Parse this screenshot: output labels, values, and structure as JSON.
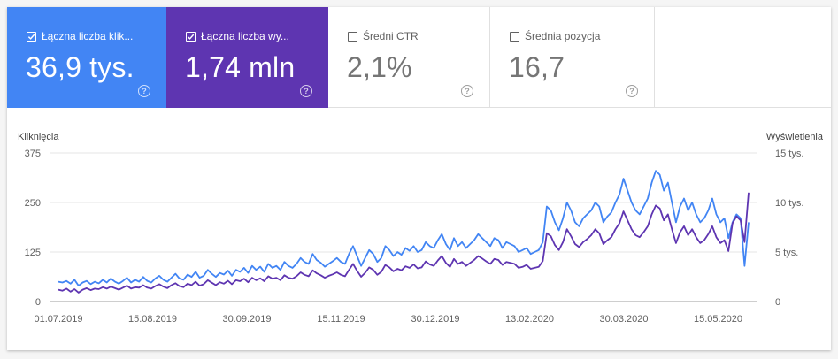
{
  "metrics": [
    {
      "label": "Łączna liczba klik...",
      "value": "36,9 tys.",
      "checked": true,
      "color": "#4285f4"
    },
    {
      "label": "Łączna liczba wy...",
      "value": "1,74 mln",
      "checked": true,
      "color": "#5e35b1"
    },
    {
      "label": "Średni CTR",
      "value": "2,1%",
      "checked": false
    },
    {
      "label": "Średnia pozycja",
      "value": "16,7",
      "checked": false
    }
  ],
  "help_glyph": "?",
  "chart_data": {
    "type": "line",
    "left_axis": {
      "title": "Kliknięcia",
      "ticks": [
        "375",
        "250",
        "125",
        "0"
      ],
      "ylim": [
        0,
        375
      ]
    },
    "right_axis": {
      "title": "Wyświetlenia",
      "ticks": [
        "15 tys.",
        "10 tys.",
        "5 tys.",
        "0"
      ],
      "ylim": [
        0,
        15000
      ]
    },
    "x_ticks": [
      "01.07.2019",
      "15.08.2019",
      "30.09.2019",
      "15.11.2019",
      "30.12.2019",
      "13.02.2020",
      "30.03.2020",
      "15.05.2020"
    ],
    "grid": true,
    "series": [
      {
        "axis": "left",
        "color": "#4285f4",
        "values": [
          50,
          48,
          52,
          45,
          55,
          40,
          48,
          52,
          44,
          50,
          46,
          55,
          48,
          58,
          50,
          45,
          52,
          60,
          48,
          55,
          50,
          62,
          52,
          48,
          58,
          65,
          55,
          50,
          60,
          70,
          58,
          55,
          68,
          62,
          75,
          60,
          65,
          80,
          70,
          62,
          72,
          68,
          78,
          65,
          80,
          75,
          85,
          72,
          90,
          80,
          88,
          75,
          95,
          85,
          90,
          80,
          100,
          90,
          85,
          95,
          110,
          100,
          95,
          120,
          105,
          98,
          88,
          95,
          102,
          110,
          100,
          95,
          120,
          140,
          115,
          90,
          110,
          130,
          120,
          100,
          110,
          140,
          130,
          115,
          125,
          118,
          135,
          128,
          140,
          125,
          130,
          150,
          140,
          135,
          155,
          170,
          145,
          130,
          160,
          140,
          150,
          135,
          145,
          155,
          170,
          160,
          150,
          140,
          160,
          155,
          135,
          150,
          145,
          140,
          125,
          130,
          135,
          120,
          125,
          130,
          150,
          240,
          230,
          200,
          180,
          210,
          250,
          230,
          200,
          190,
          210,
          220,
          230,
          250,
          240,
          200,
          215,
          225,
          250,
          270,
          310,
          280,
          250,
          230,
          220,
          240,
          260,
          300,
          330,
          320,
          280,
          300,
          250,
          200,
          240,
          260,
          230,
          250,
          220,
          200,
          210,
          230,
          260,
          220,
          200,
          210,
          160,
          200,
          220,
          210,
          90,
          200
        ]
      },
      {
        "axis": "right",
        "color": "#5e35b1",
        "values": [
          1200,
          1100,
          1300,
          1000,
          1250,
          900,
          1200,
          1350,
          1150,
          1300,
          1250,
          1450,
          1300,
          1500,
          1350,
          1200,
          1400,
          1600,
          1300,
          1450,
          1400,
          1650,
          1400,
          1300,
          1550,
          1750,
          1500,
          1350,
          1650,
          1850,
          1550,
          1450,
          1800,
          1650,
          2000,
          1600,
          1750,
          2150,
          1900,
          1650,
          1950,
          1800,
          2100,
          1750,
          2150,
          2050,
          2300,
          1950,
          2400,
          2150,
          2350,
          2050,
          2550,
          2300,
          2400,
          2150,
          2650,
          2400,
          2300,
          2550,
          2950,
          2700,
          2550,
          3150,
          2850,
          2650,
          2400,
          2600,
          2750,
          2950,
          2700,
          2550,
          3200,
          3800,
          3100,
          2500,
          2900,
          3450,
          3200,
          2700,
          3000,
          3700,
          3450,
          3050,
          3300,
          3150,
          3550,
          3400,
          3750,
          3350,
          3450,
          4050,
          3750,
          3600,
          4150,
          4600,
          3900,
          3500,
          4300,
          3800,
          4000,
          3600,
          3900,
          4200,
          4600,
          4350,
          4050,
          3800,
          4300,
          4200,
          3700,
          4000,
          3900,
          3800,
          3400,
          3500,
          3700,
          3300,
          3400,
          3500,
          4100,
          6900,
          6600,
          5700,
          5200,
          6000,
          7300,
          6600,
          5800,
          5500,
          6000,
          6300,
          6700,
          7300,
          6900,
          5800,
          6200,
          6500,
          7300,
          7900,
          9100,
          8200,
          7300,
          6700,
          6500,
          7000,
          7600,
          8800,
          9700,
          9400,
          8200,
          8800,
          7300,
          5900,
          7000,
          7600,
          6700,
          7300,
          6500,
          5900,
          6200,
          6800,
          7600,
          6500,
          5900,
          6200,
          5100,
          7900,
          8600,
          8200,
          6000,
          11000
        ]
      }
    ]
  }
}
